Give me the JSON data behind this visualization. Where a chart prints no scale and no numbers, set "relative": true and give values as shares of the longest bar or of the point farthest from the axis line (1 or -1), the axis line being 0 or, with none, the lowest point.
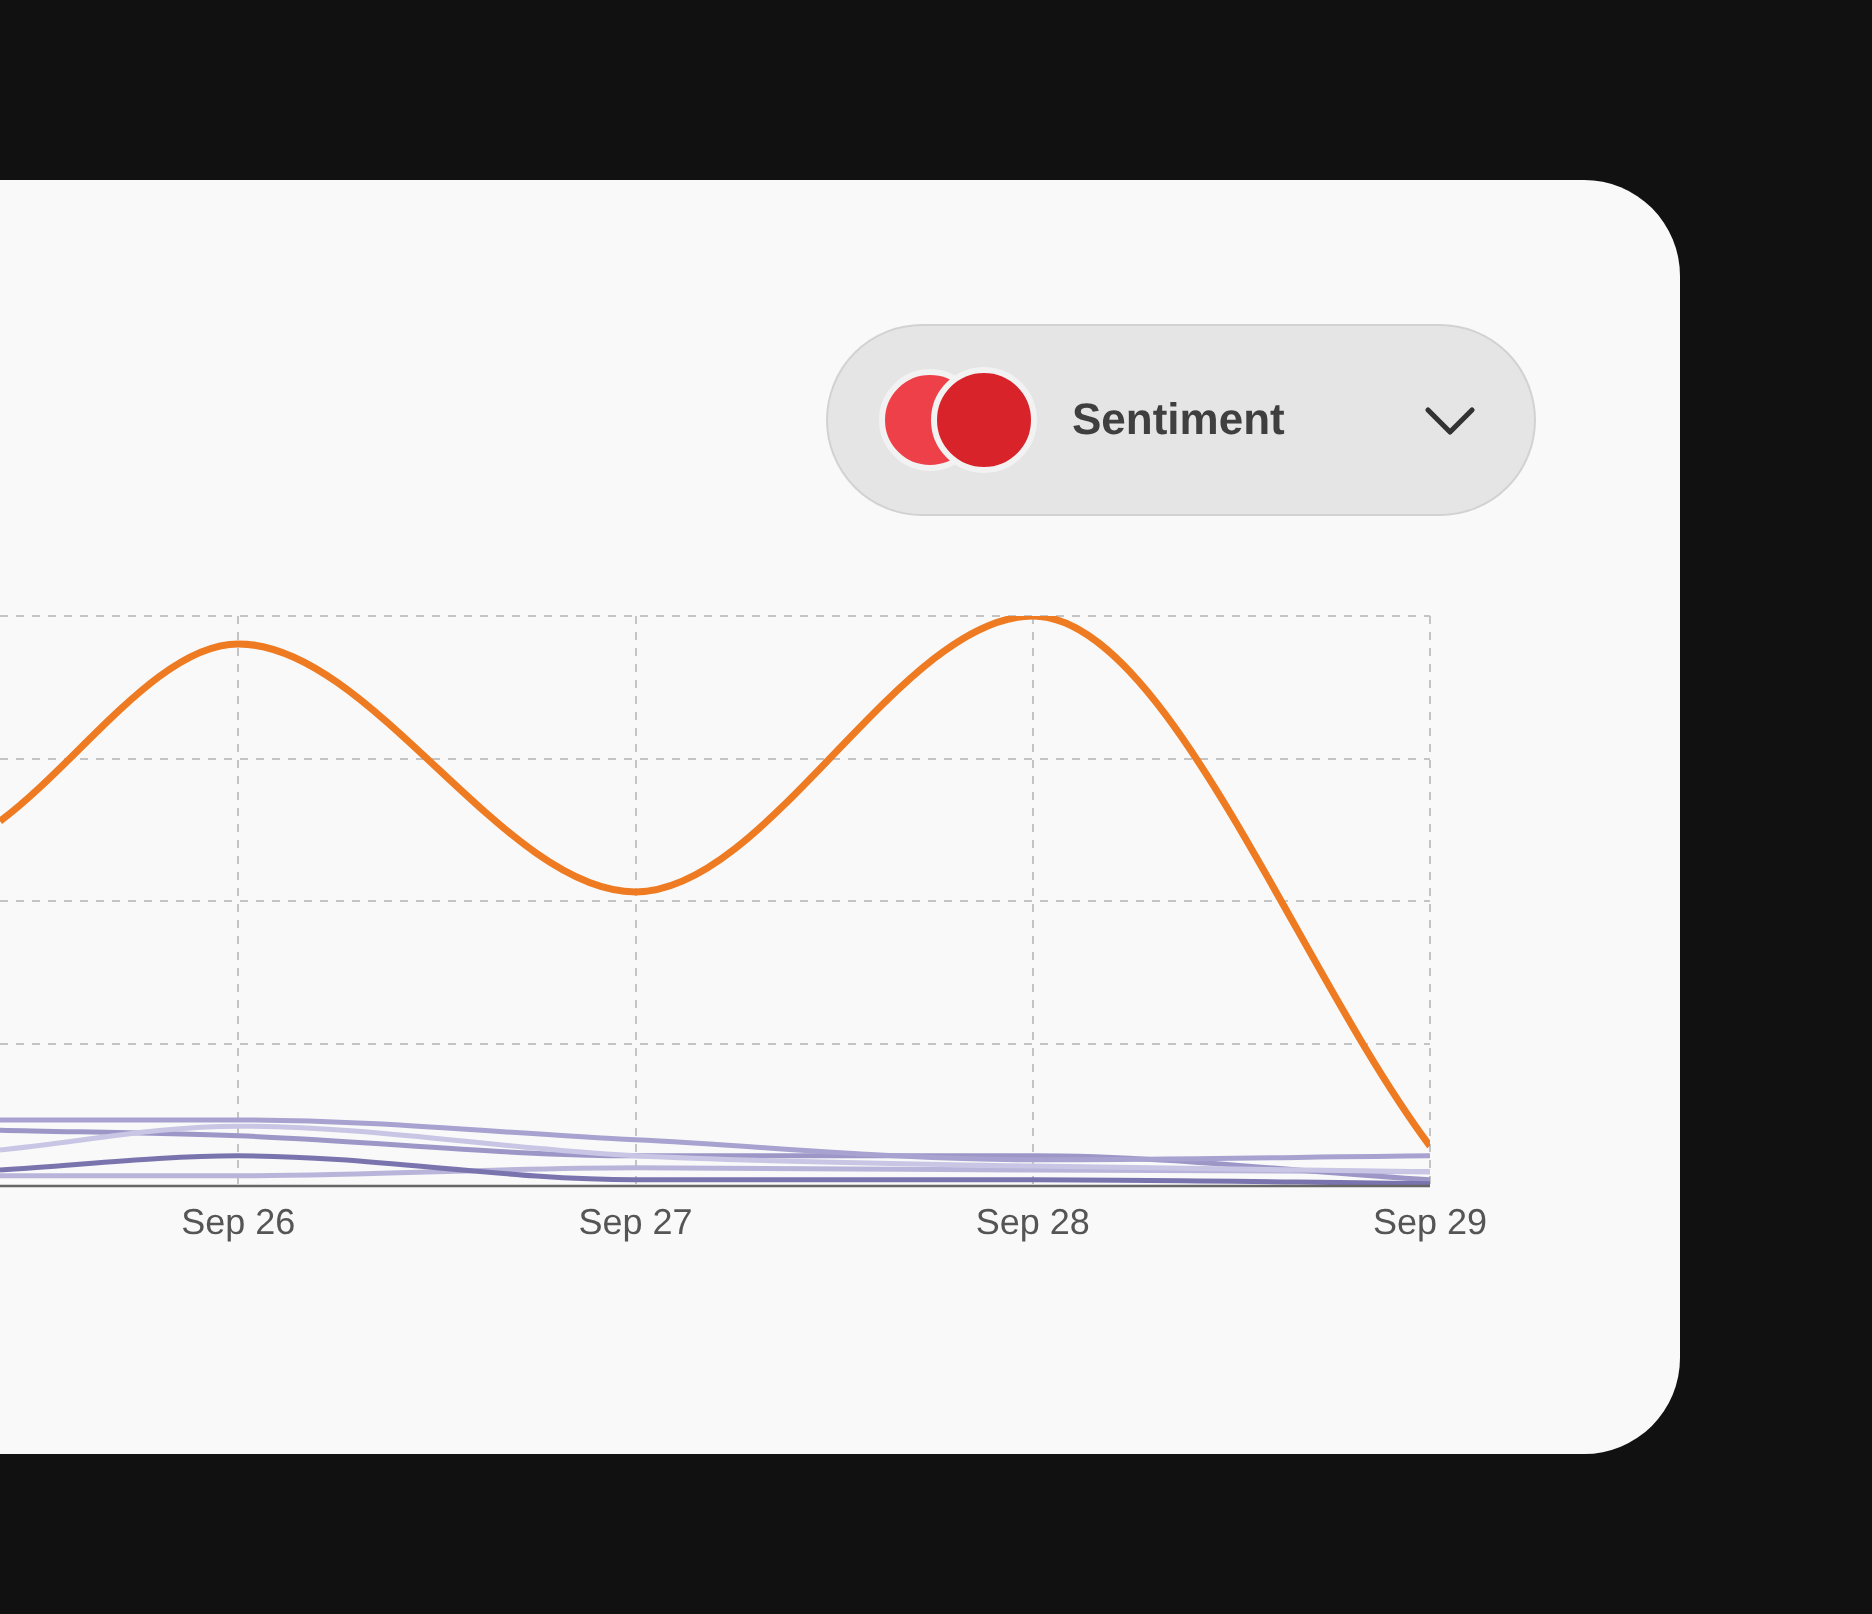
{
  "chart_data": {
    "type": "line",
    "relative": true,
    "grid": true,
    "legend": false,
    "marker": "none",
    "line_style": "solid",
    "x": [
      "--09-25T09:36",
      "--09-26",
      "--09-27",
      "--09-28",
      "--09-29"
    ],
    "xlim": [
      "--09-25T09:36",
      "--09-29"
    ],
    "xticks": [
      {
        "value": "--09-26",
        "label": "Sep 26"
      },
      {
        "value": "--09-27",
        "label": "Sep 27"
      },
      {
        "value": "--09-28",
        "label": "Sep 28"
      },
      {
        "value": "--09-29",
        "label": "Sep 29"
      }
    ],
    "series": [
      {
        "color": "#a8a2d0",
        "values": [
          0.116,
          0.116,
          0.081,
          0.046,
          0.053
        ]
      },
      {
        "color": "#c9c5e4",
        "values": [
          0.063,
          0.105,
          0.053,
          0.035,
          0.025
        ]
      },
      {
        "color": "#7a74ae",
        "values": [
          0.028,
          0.053,
          0.011,
          0.011,
          0.004
        ]
      },
      {
        "color": "#9d97c8",
        "values": [
          0.098,
          0.088,
          0.053,
          0.053,
          0.011
        ]
      },
      {
        "color": "#b9b5da",
        "values": [
          0.018,
          0.018,
          0.032,
          0.028,
          0.025
        ]
      },
      {
        "color": "#ee7b22",
        "values": [
          0.64,
          0.951,
          0.516,
          1.0,
          0.07
        ]
      }
    ],
    "annotations": [
      "Sentiment"
    ]
  }
}
